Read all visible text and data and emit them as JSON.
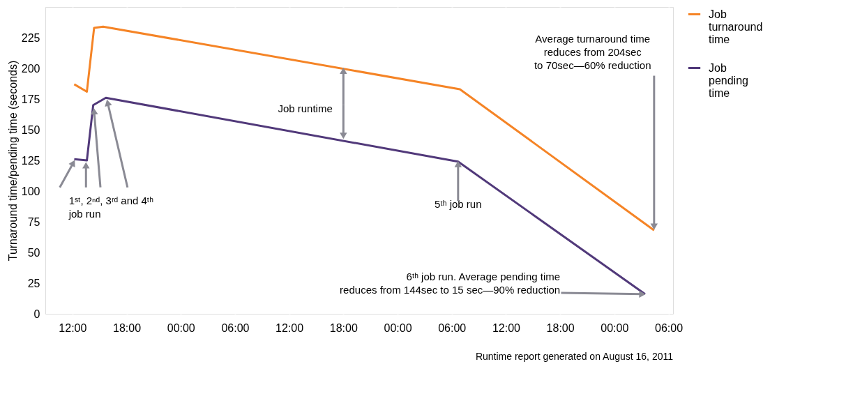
{
  "chart_data": {
    "type": "line",
    "ylabel": "Turnaround time/pending time (seconds)",
    "x": [
      "2011-08-13T12:12",
      "2011-08-13T13:36",
      "2011-08-13T14:24",
      "2011-08-13T15:24",
      "2011-08-15T06:54",
      "2011-08-16T04:24"
    ],
    "series": [
      {
        "name": "Job turnaround time",
        "color": "#f58426",
        "values": [
          187,
          181,
          233,
          234,
          183,
          68
        ]
      },
      {
        "name": "Job pending time",
        "color": "#51397a",
        "x": [
          "2011-08-13T12:12",
          "2011-08-13T13:36",
          "2011-08-13T14:18",
          "2011-08-13T15:42",
          "2011-08-15T06:42",
          "2011-08-16T03:24"
        ],
        "values": [
          126,
          125,
          170,
          176,
          124,
          16
        ]
      }
    ],
    "xlim": [
      "2011-08-13T09:00",
      "2011-08-16T06:30"
    ],
    "xticks": [
      {
        "value": "2011-08-13T12:00",
        "label": "12:00"
      },
      {
        "value": "2011-08-13T18:00",
        "label": "18:00"
      },
      {
        "value": "2011-08-14T00:00",
        "label": "00:00"
      },
      {
        "value": "2011-08-14T06:00",
        "label": "06:00"
      },
      {
        "value": "2011-08-14T12:00",
        "label": "12:00"
      },
      {
        "value": "2011-08-14T18:00",
        "label": "18:00"
      },
      {
        "value": "2011-08-15T00:00",
        "label": "00:00"
      },
      {
        "value": "2011-08-15T06:00",
        "label": "06:00"
      },
      {
        "value": "2011-08-15T12:00",
        "label": "12:00"
      },
      {
        "value": "2011-08-15T18:00",
        "label": "18:00"
      },
      {
        "value": "2011-08-16T00:00",
        "label": "00:00"
      },
      {
        "value": "2011-08-16T06:00",
        "label": "06:00"
      }
    ],
    "ylim": [
      0,
      250
    ],
    "yticks": [
      0,
      25,
      50,
      75,
      100,
      125,
      150,
      175,
      200,
      225
    ],
    "grid": "x",
    "legend": "right",
    "marker": "none",
    "line_style": "solid",
    "annotations": [
      {
        "text": "Job runtime",
        "x": "2011-08-14T18:00",
        "y": 200
      },
      {
        "text": "1ˢᵗ, 2ⁿᵈ, 3ʳᵈ and 4ᵗʰ\njob run",
        "x": "2011-08-13T12:12",
        "y": 126
      },
      {
        "text": "5ᵗʰ job run",
        "x": "2011-08-15T06:42",
        "y": 124
      },
      {
        "text": "Average turnaround time\nreduces from 204sec\nto 70sec—60% reduction",
        "x": "2011-08-16T04:24",
        "y": 68
      },
      {
        "text": "6ᵗʰ job run. Average pending time\nreduces from 144sec to 15 sec—90% reduction",
        "x": "2011-08-16T03:24",
        "y": 16
      },
      "Runtime report generated on August 16, 2011"
    ]
  }
}
